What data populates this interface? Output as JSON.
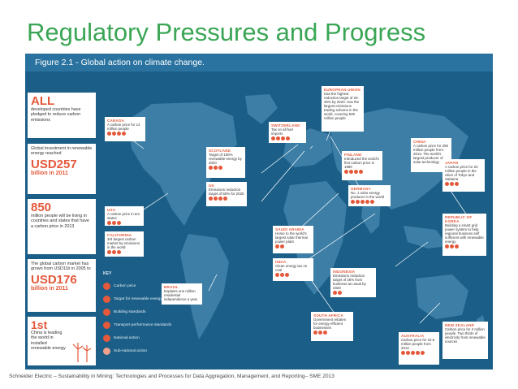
{
  "slide": {
    "title": "Regulatory Pressures and Progress",
    "footer": "Schneider Electric – Sustainability in Mining: Technologies and Processes for Data Aggregation, Management, and Reporting– SME 2013"
  },
  "figure": {
    "caption": "Figure 2.1 - Global action on climate change.",
    "stats": [
      {
        "big": "ALL",
        "text": "developed countries have pledged to reduce carbon emissions",
        "unit": ""
      },
      {
        "big": "USD257",
        "text": "Global investment in renewable energy reached",
        "unit": "billion in 2011"
      },
      {
        "big": "850",
        "text": "million people will be living in countries and states that have a carbon price in 2013",
        "unit": ""
      },
      {
        "big": "USD176",
        "text": "The global carbon market has grown from USD11b in 2005 to",
        "unit": "billion in 2011"
      },
      {
        "big": "1st",
        "text": "China is leading the world in installed renewable energy",
        "unit": ""
      }
    ],
    "callouts": [
      {
        "head": "CANADA",
        "body": "A carbon price for 14 million people"
      },
      {
        "head": "USA",
        "body": "A carbon price in ten states"
      },
      {
        "head": "CALIFORNIA",
        "body": "3rd largest carbon market by emissions in the world"
      },
      {
        "head": "BRAZIL",
        "body": "Explains one million residential independence a year"
      },
      {
        "head": "SCOTLAND",
        "body": "Target of 100% renewable energy by 2020"
      },
      {
        "head": "UK",
        "body": "Emissions reduction target of 50% for 2025"
      },
      {
        "head": "SWITZERLAND",
        "body": "Tax on all fuel imports"
      },
      {
        "head": "EUROPEAN UNION",
        "body": "Has the highest reduction target of 20-30% by 2020. Has the largest emissions trading scheme in the world, covering 500 million people"
      },
      {
        "head": "FINLAND",
        "body": "Introduced the world's first carbon price in 1990"
      },
      {
        "head": "GERMANY",
        "body": "No. 1 solar energy producer in the world"
      },
      {
        "head": "SAUDI ARABIA",
        "body": "Home to the world's largest solar thermal power plant"
      },
      {
        "head": "INDIA",
        "body": "Clean energy tax on coal"
      },
      {
        "head": "CHINA",
        "body": "A carbon price for 250 million people from 2013. The world's largest producer of solar technology"
      },
      {
        "head": "JAPAN",
        "body": "A carbon price for 20 million people in the cities of Tokyo and Saitama"
      },
      {
        "head": "REPUBLIC OF KOREA",
        "body": "Building a smart grid power system to help regional business self sufficient with renewable energy"
      },
      {
        "head": "INDONESIA",
        "body": "Emissions reduction target of 26% from business as usual by 2020"
      },
      {
        "head": "SOUTH AFRICA",
        "body": "Government rebates for energy efficient businesses"
      },
      {
        "head": "AUSTRALIA",
        "body": "Carbon price for 22.5 million people from 2012"
      },
      {
        "head": "NEW ZEALAND",
        "body": "Carbon price for 4 million people. Two thirds of electricity from renewable sources"
      }
    ],
    "key": {
      "title": "KEY",
      "items": [
        "Carbon price",
        "Target for renewable energy",
        "Building standards",
        "Transport performance standards",
        "National action",
        "Sub-national action"
      ]
    }
  },
  "colors": {
    "title_green": "#3aa655",
    "ocean": "#1b5f88",
    "land": "#3c7ea6",
    "accent": "#e4593b"
  }
}
